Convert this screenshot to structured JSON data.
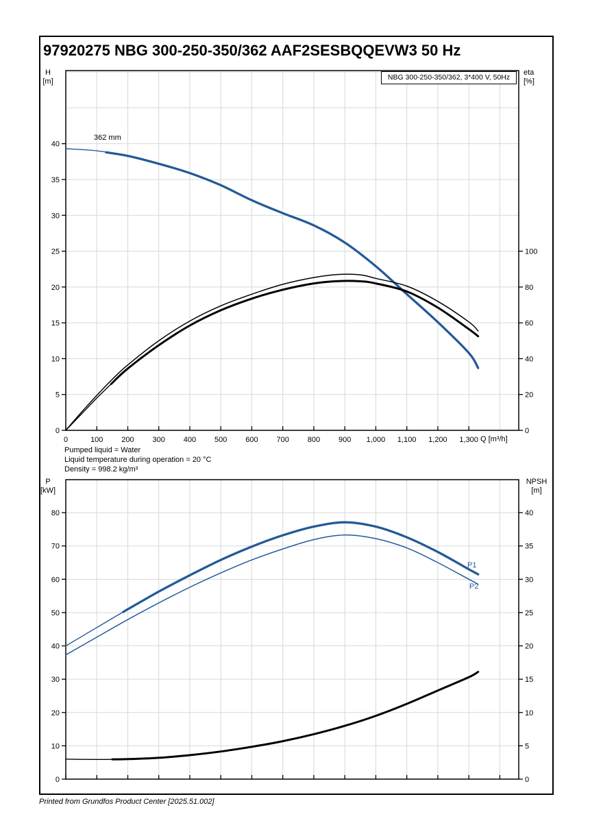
{
  "page": {
    "title": "97920275 NBG 300-250-350/362 AAF2SESBQQEVW3 50 Hz",
    "footer": "Printed from Grundfos Product Center [2025.51.002]"
  },
  "info": [
    "Pumped liquid = Water",
    "Liquid temperature during operation = 20 °C",
    "Density = 998.2 kg/m³"
  ],
  "colors": {
    "blue": "#245A96",
    "black": "#000000",
    "grid": "#D8D8D8",
    "frame": "#000000",
    "text": "#000000"
  },
  "chart_data": [
    {
      "type": "line",
      "legend": "NBG 300-250-350/362, 3*400 V, 50Hz",
      "x_axis": {
        "label": "Q [m³/h]",
        "range": [
          0,
          1461
        ],
        "grid_step": 100,
        "tick_values": [
          0,
          100,
          200,
          300,
          400,
          500,
          600,
          700,
          800,
          900,
          1000,
          1100,
          1200,
          1300
        ]
      },
      "left_axis": {
        "label": "H",
        "unit": "[m]",
        "range": [
          0,
          50.2
        ],
        "grid_step": 5,
        "tick_values": [
          0,
          5,
          10,
          15,
          20,
          25,
          30,
          35,
          40
        ]
      },
      "right_axis": {
        "label": "eta",
        "unit": "[%]",
        "tick_values": [
          0,
          20,
          40,
          60,
          80,
          100
        ],
        "to_left_factor": 0.25
      },
      "series": [
        {
          "name": "head-curve",
          "label": "362 mm",
          "axis": "left",
          "color": "blue",
          "thick_from": 130,
          "points": [
            [
              0,
              39.3
            ],
            [
              100,
              39.0
            ],
            [
              200,
              38.3
            ],
            [
              300,
              37.2
            ],
            [
              400,
              35.9
            ],
            [
              500,
              34.2
            ],
            [
              600,
              32.1
            ],
            [
              700,
              30.3
            ],
            [
              800,
              28.6
            ],
            [
              900,
              26.2
            ],
            [
              1000,
              22.9
            ],
            [
              1100,
              19.0
            ],
            [
              1200,
              15.1
            ],
            [
              1300,
              10.8
            ],
            [
              1330,
              8.7
            ]
          ]
        },
        {
          "name": "efficiency-curve-thin",
          "axis": "right",
          "color": "black",
          "thin": true,
          "points": [
            [
              0,
              0
            ],
            [
              50,
              10
            ],
            [
              100,
              19.5
            ],
            [
              150,
              28.5
            ],
            [
              200,
              36.5
            ],
            [
              300,
              50
            ],
            [
              400,
              61
            ],
            [
              500,
              69.5
            ],
            [
              600,
              76
            ],
            [
              700,
              81.5
            ],
            [
              800,
              85.3
            ],
            [
              880,
              87
            ],
            [
              950,
              86.8
            ],
            [
              1000,
              84.8
            ],
            [
              1100,
              80.5
            ],
            [
              1200,
              72
            ],
            [
              1300,
              60.5
            ],
            [
              1330,
              55.5
            ]
          ]
        },
        {
          "name": "efficiency-curve-thick",
          "axis": "right",
          "color": "black",
          "thick_from": 150,
          "points": [
            [
              0,
              0
            ],
            [
              50,
              9
            ],
            [
              100,
              18
            ],
            [
              150,
              26.5
            ],
            [
              200,
              34.5
            ],
            [
              300,
              47.5
            ],
            [
              400,
              58.5
            ],
            [
              500,
              67
            ],
            [
              600,
              73.5
            ],
            [
              700,
              78.5
            ],
            [
              800,
              82
            ],
            [
              880,
              83.3
            ],
            [
              950,
              83.2
            ],
            [
              1000,
              82
            ],
            [
              1100,
              77.5
            ],
            [
              1200,
              68.5
            ],
            [
              1300,
              56.5
            ],
            [
              1330,
              52.5
            ]
          ]
        }
      ]
    },
    {
      "type": "line",
      "legend": "",
      "x_axis": {
        "label": "",
        "range": [
          0,
          1461
        ],
        "grid_step": 100,
        "tick_values": []
      },
      "left_axis": {
        "label": "P",
        "unit": "[kW]",
        "range": [
          0,
          89.9
        ],
        "grid_step": 10,
        "tick_values": [
          0,
          10,
          20,
          30,
          40,
          50,
          60,
          70,
          80
        ]
      },
      "right_axis": {
        "label": "NPSH",
        "unit": "[m]",
        "tick_values": [
          0,
          5,
          10,
          15,
          20,
          25,
          30,
          35,
          40
        ],
        "to_left_factor": 2
      },
      "series": [
        {
          "name": "p1-curve",
          "label": "P1",
          "axis": "left",
          "color": "blue",
          "thick_from": 185,
          "points": [
            [
              0,
              40
            ],
            [
              100,
              45.5
            ],
            [
              200,
              51
            ],
            [
              300,
              56.3
            ],
            [
              400,
              61.2
            ],
            [
              500,
              65.8
            ],
            [
              600,
              69.8
            ],
            [
              700,
              73.2
            ],
            [
              800,
              75.8
            ],
            [
              900,
              77.1
            ],
            [
              1000,
              75.8
            ],
            [
              1100,
              72.6
            ],
            [
              1200,
              68.2
            ],
            [
              1300,
              63
            ],
            [
              1330,
              61.5
            ]
          ]
        },
        {
          "name": "p2-curve",
          "label": "P2",
          "axis": "left",
          "color": "blue",
          "thin": true,
          "points": [
            [
              0,
              37.3
            ],
            [
              100,
              42.6
            ],
            [
              200,
              47.9
            ],
            [
              300,
              52.9
            ],
            [
              400,
              57.6
            ],
            [
              500,
              61.9
            ],
            [
              600,
              65.8
            ],
            [
              700,
              69.1
            ],
            [
              800,
              71.9
            ],
            [
              900,
              73.3
            ],
            [
              1000,
              72.2
            ],
            [
              1100,
              69.4
            ],
            [
              1200,
              65.0
            ],
            [
              1300,
              60.0
            ],
            [
              1330,
              58.5
            ]
          ]
        },
        {
          "name": "npsh-curve",
          "axis": "right",
          "color": "black",
          "thick_from": 150,
          "points": [
            [
              0,
              3.0
            ],
            [
              100,
              2.95
            ],
            [
              200,
              3.0
            ],
            [
              300,
              3.2
            ],
            [
              400,
              3.6
            ],
            [
              500,
              4.15
            ],
            [
              600,
              4.85
            ],
            [
              700,
              5.7
            ],
            [
              800,
              6.75
            ],
            [
              900,
              8.0
            ],
            [
              1000,
              9.5
            ],
            [
              1100,
              11.3
            ],
            [
              1200,
              13.3
            ],
            [
              1300,
              15.3
            ],
            [
              1330,
              16.1
            ]
          ]
        }
      ]
    }
  ]
}
